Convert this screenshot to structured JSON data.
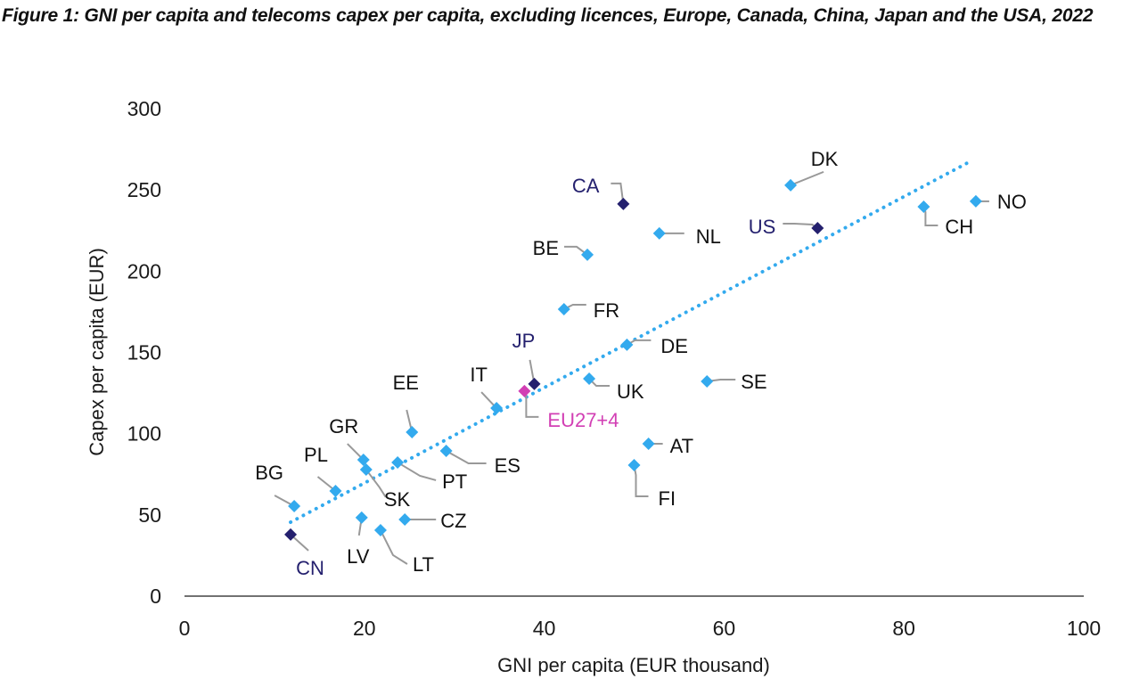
{
  "title": "Figure 1: GNI per capita and telecoms capex per capita, excluding licences, Europe, Canada, China, Japan and the USA, 2022",
  "colors": {
    "europe": "#33aaee",
    "non_europe": "#24206e",
    "aggregate": "#d23fb4",
    "leader": "#999999",
    "trend": "#33aaee",
    "axis": "#444444"
  },
  "chart_data": {
    "type": "scatter",
    "title": "Figure 1: GNI per capita and telecoms capex per capita, excluding licences, Europe, Canada, China, Japan and the USA, 2022",
    "xlabel": "GNI per capita (EUR thousand)",
    "ylabel": "Capex per capita (EUR)",
    "xlim": [
      0,
      100
    ],
    "ylim": [
      0,
      300
    ],
    "xticks": [
      "0",
      "20",
      "40",
      "60",
      "80",
      "100"
    ],
    "yticks": [
      "0",
      "50",
      "100",
      "150",
      "200",
      "250",
      "300"
    ],
    "grid": false,
    "trendline": {
      "style": "dotted",
      "x": [
        11.8,
        87.6
      ],
      "y": [
        45.5,
        268.2
      ]
    },
    "points": [
      {
        "label": "CN",
        "x": 11.8,
        "y": 37.9,
        "group": "non_europe"
      },
      {
        "label": "BG",
        "x": 12.2,
        "y": 55.4,
        "group": "europe"
      },
      {
        "label": "PL",
        "x": 16.8,
        "y": 64.7,
        "group": "europe"
      },
      {
        "label": "GR",
        "x": 19.9,
        "y": 83.9,
        "group": "europe"
      },
      {
        "label": "SK",
        "x": 20.2,
        "y": 77.9,
        "group": "europe"
      },
      {
        "label": "LV",
        "x": 19.7,
        "y": 48.3,
        "group": "europe"
      },
      {
        "label": "LT",
        "x": 21.8,
        "y": 40.6,
        "group": "europe"
      },
      {
        "label": "CZ",
        "x": 24.5,
        "y": 47.2,
        "group": "europe"
      },
      {
        "label": "PT",
        "x": 23.7,
        "y": 82.3,
        "group": "europe"
      },
      {
        "label": "EE",
        "x": 25.3,
        "y": 100.9,
        "group": "europe"
      },
      {
        "label": "ES",
        "x": 29.1,
        "y": 89.4,
        "group": "europe"
      },
      {
        "label": "IT",
        "x": 34.7,
        "y": 115.7,
        "group": "europe"
      },
      {
        "label": "EU27+4",
        "x": 37.8,
        "y": 126.2,
        "group": "aggregate"
      },
      {
        "label": "JP",
        "x": 38.9,
        "y": 130.6,
        "group": "non_europe"
      },
      {
        "label": "FR",
        "x": 42.2,
        "y": 176.6,
        "group": "europe"
      },
      {
        "label": "BE",
        "x": 44.8,
        "y": 210.1,
        "group": "europe"
      },
      {
        "label": "CA",
        "x": 48.8,
        "y": 241.4,
        "group": "non_europe"
      },
      {
        "label": "NL",
        "x": 52.8,
        "y": 223.3,
        "group": "europe"
      },
      {
        "label": "UK",
        "x": 45.0,
        "y": 133.8,
        "group": "europe"
      },
      {
        "label": "DE",
        "x": 49.2,
        "y": 154.7,
        "group": "europe"
      },
      {
        "label": "SE",
        "x": 58.1,
        "y": 132.2,
        "group": "europe"
      },
      {
        "label": "AT",
        "x": 51.6,
        "y": 93.8,
        "group": "europe"
      },
      {
        "label": "FI",
        "x": 50.0,
        "y": 80.6,
        "group": "europe"
      },
      {
        "label": "DK",
        "x": 67.4,
        "y": 252.9,
        "group": "europe"
      },
      {
        "label": "US",
        "x": 70.4,
        "y": 226.5,
        "group": "non_europe"
      },
      {
        "label": "CH",
        "x": 82.2,
        "y": 239.7,
        "group": "europe"
      },
      {
        "label": "NO",
        "x": 88.0,
        "y": 243.0,
        "group": "europe"
      }
    ]
  }
}
